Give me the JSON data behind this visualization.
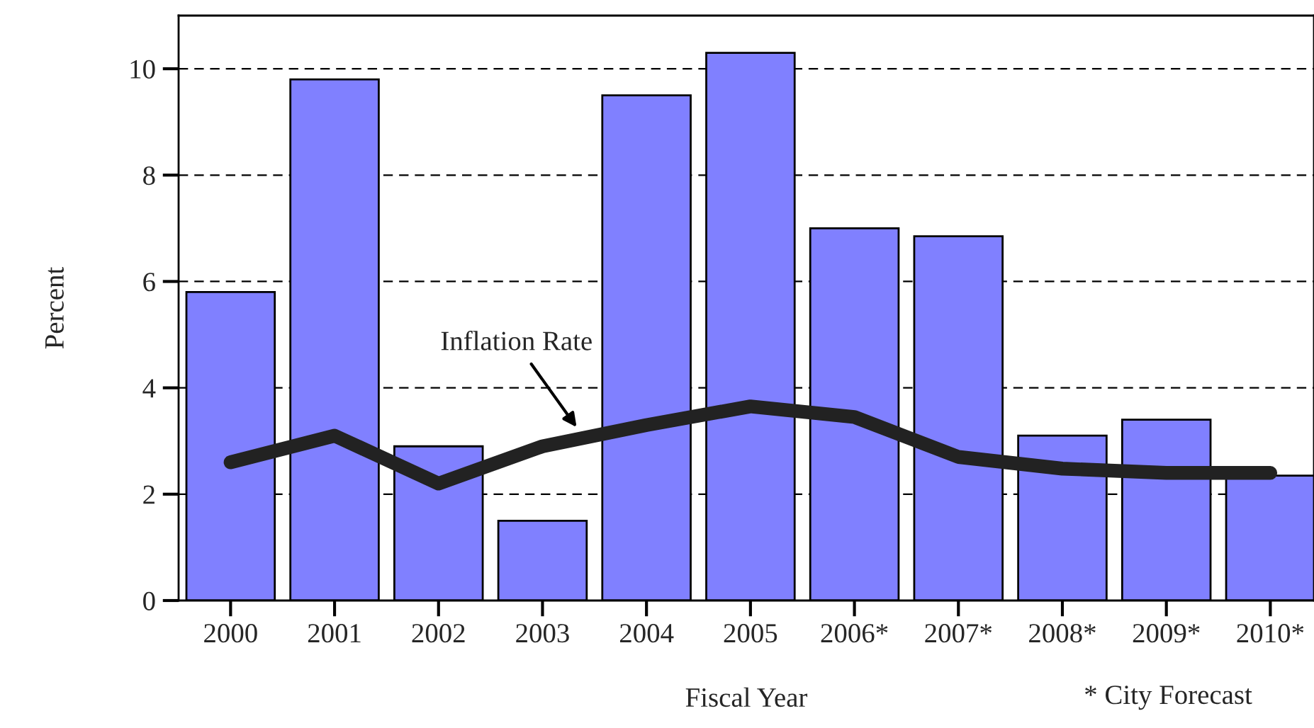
{
  "chart_data": {
    "type": "bar",
    "xlabel": "Fiscal Year",
    "ylabel": "Percent",
    "categories": [
      "2000",
      "2001",
      "2002",
      "2003",
      "2004",
      "2005",
      "2006*",
      "2007*",
      "2008*",
      "2009*",
      "2010*"
    ],
    "series": [
      {
        "color": "#8080ff",
        "values": [
          5.8,
          9.8,
          2.9,
          1.5,
          9.5,
          10.3,
          7.0,
          6.85,
          3.1,
          3.4,
          2.35
        ]
      },
      {
        "type": "line",
        "name": "Inflation Rate",
        "color": "#222222",
        "values": [
          2.6,
          3.1,
          2.2,
          2.9,
          3.3,
          3.65,
          3.45,
          2.7,
          2.48,
          2.4,
          2.4
        ]
      }
    ],
    "ylim": [
      0,
      11
    ],
    "yticks": [
      0,
      2,
      4,
      6,
      8,
      10
    ],
    "grid": "y",
    "line_style": "solid",
    "annotations": [
      "* City Forecast"
    ]
  }
}
